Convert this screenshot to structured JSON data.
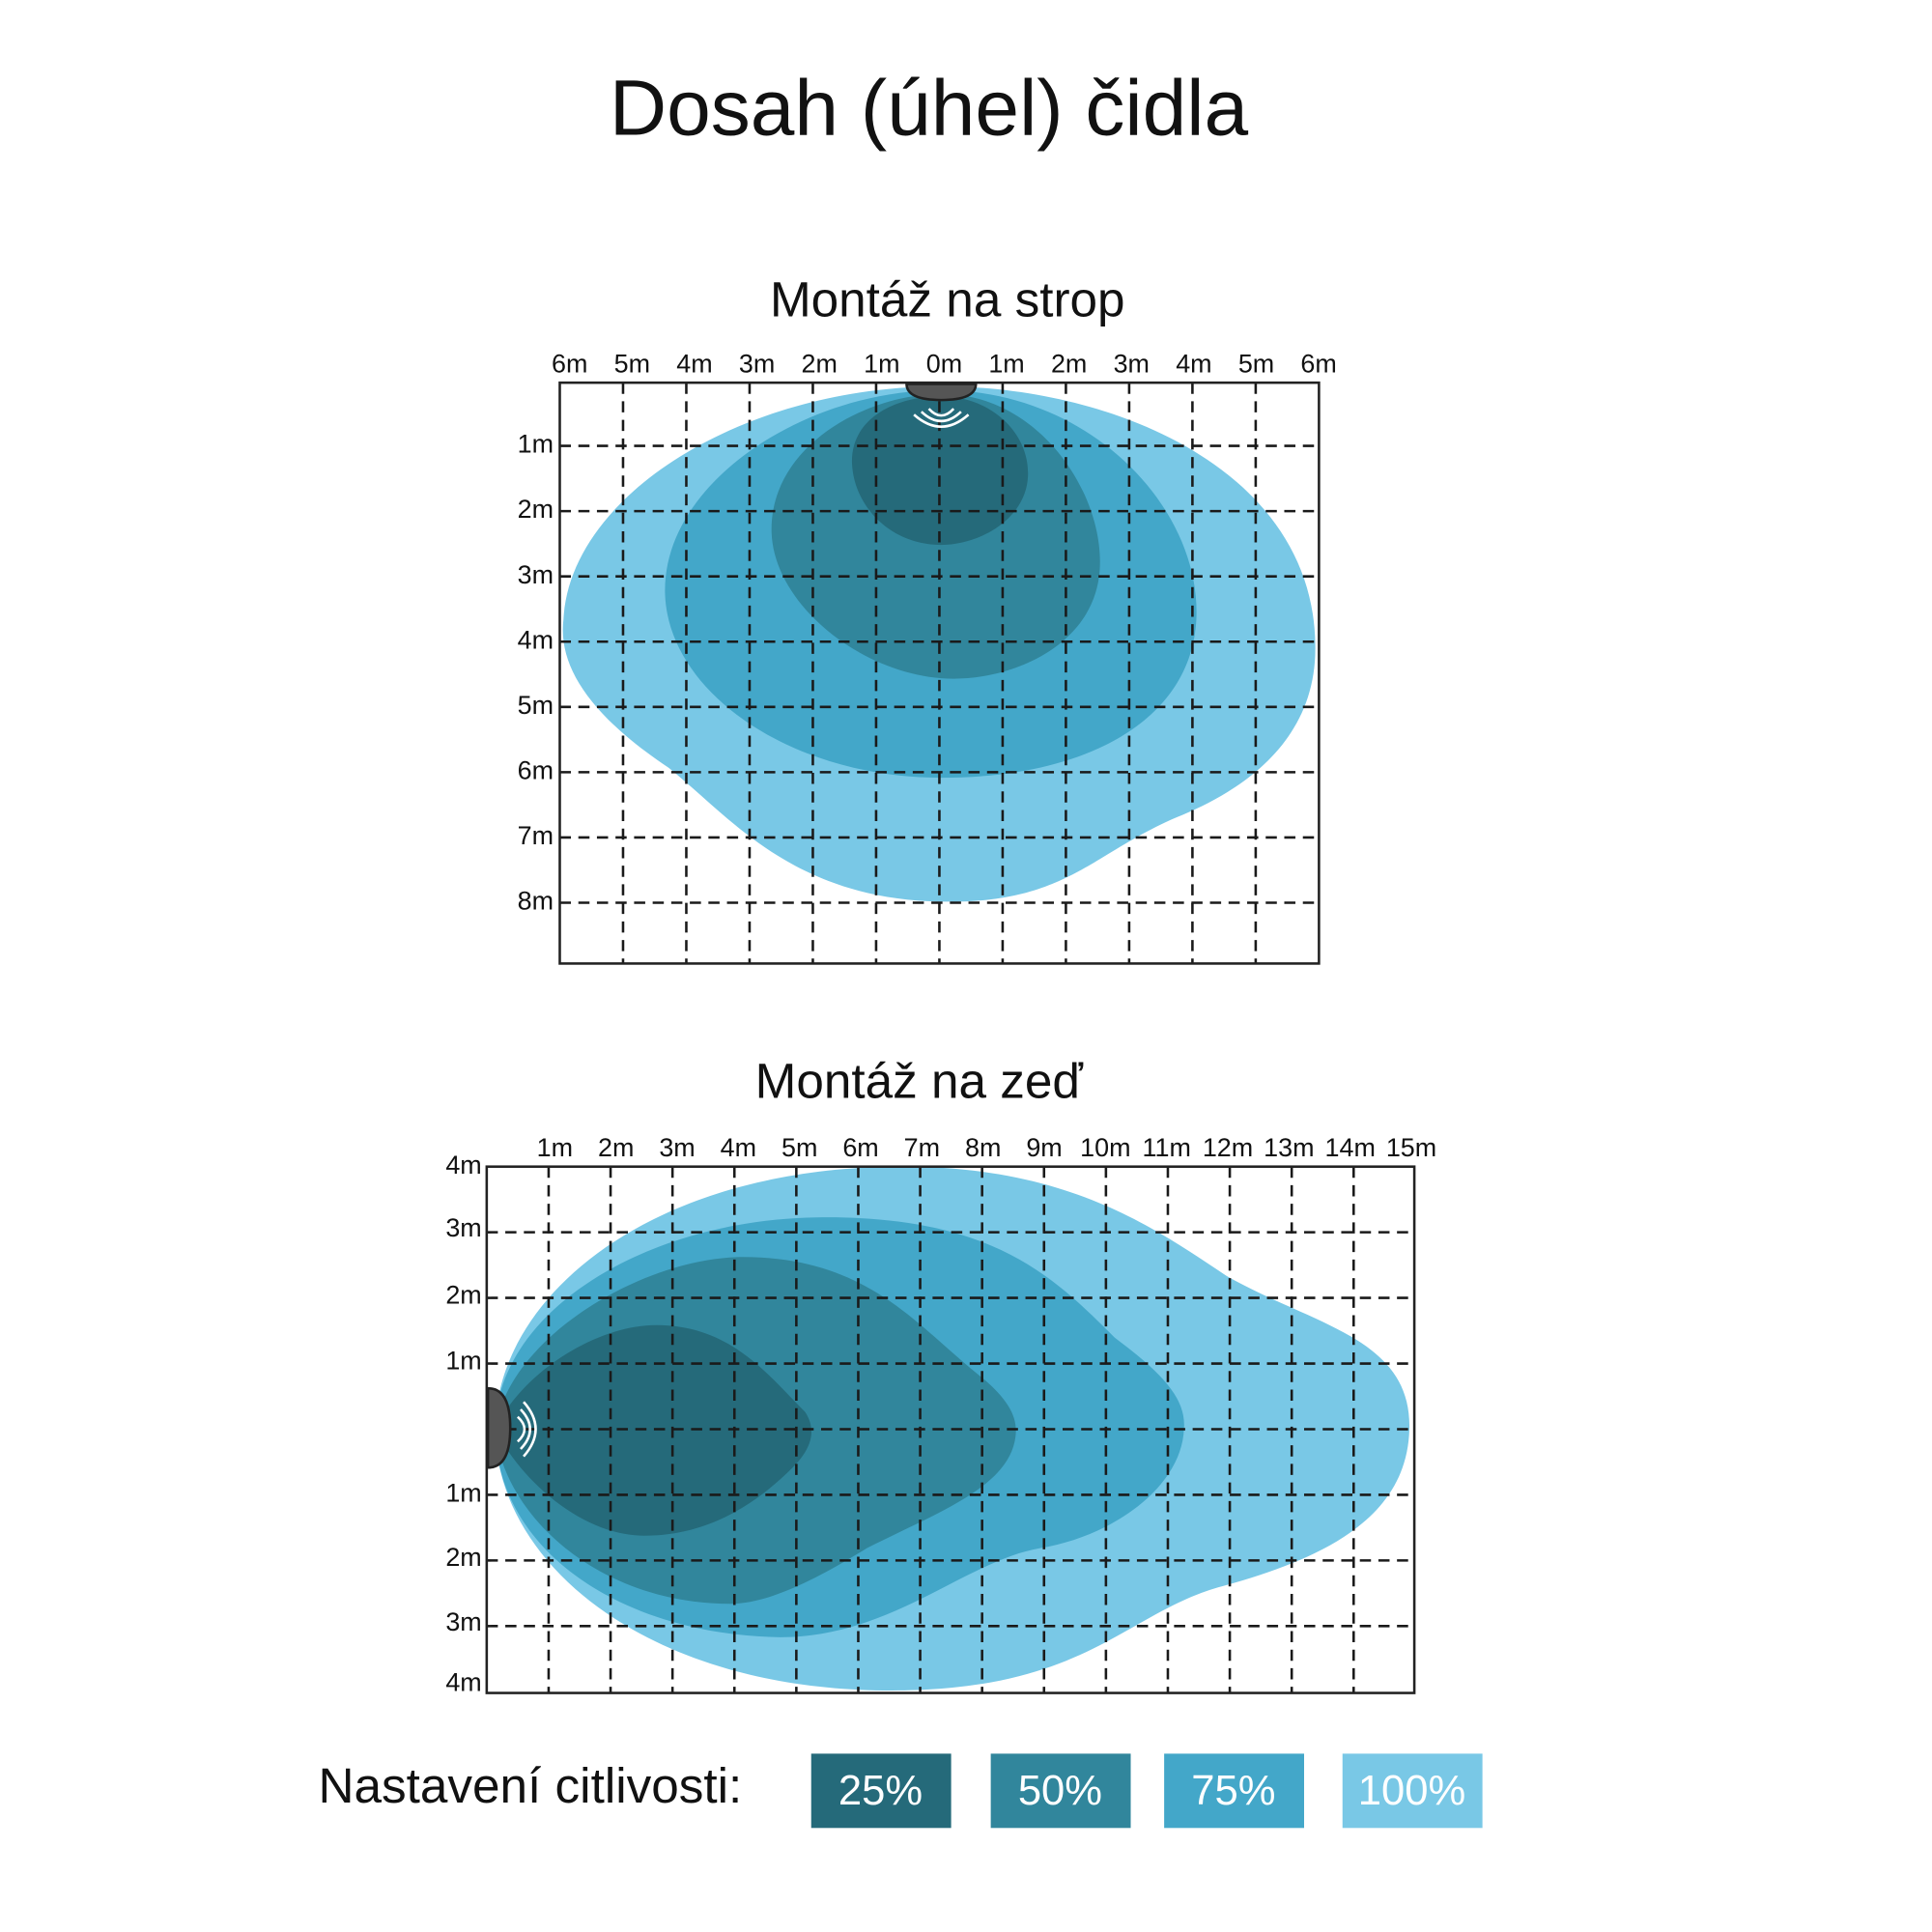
{
  "title": "Dosah (úhel) čidla",
  "ceiling": {
    "title": "Montáž na strop",
    "x_labels": [
      "6m",
      "5m",
      "4m",
      "3m",
      "2m",
      "1m",
      "0m",
      "1m",
      "2m",
      "3m",
      "4m",
      "5m",
      "6m"
    ],
    "y_labels": [
      "1m",
      "2m",
      "3m",
      "4m",
      "5m",
      "6m",
      "7m",
      "8m"
    ]
  },
  "wall": {
    "title": "Montáž na zeď",
    "x_labels": [
      "1m",
      "2m",
      "3m",
      "4m",
      "5m",
      "6m",
      "7m",
      "8m",
      "9m",
      "10m",
      "11m",
      "12m",
      "13m",
      "14m",
      "15m"
    ],
    "y_labels": [
      "4m",
      "3m",
      "2m",
      "1m",
      "1m",
      "2m",
      "3m",
      "4m"
    ]
  },
  "legend": {
    "label": "Nastavení citlivosti:",
    "items": [
      {
        "label": "25%",
        "color": "#256a7a"
      },
      {
        "label": "50%",
        "color": "#31869c"
      },
      {
        "label": "75%",
        "color": "#43a7c9"
      },
      {
        "label": "100%",
        "color": "#79c8e6"
      }
    ]
  }
}
